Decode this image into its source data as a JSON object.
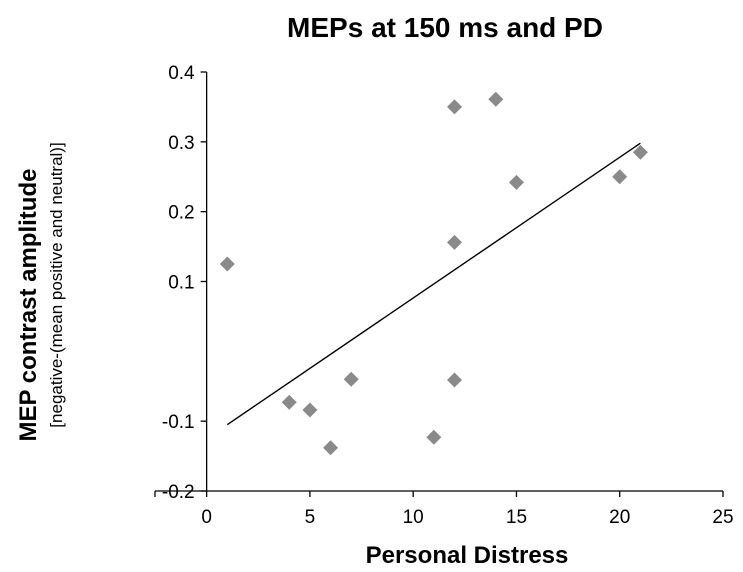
{
  "chart_data": {
    "type": "scatter",
    "title": "MEPs at 150 ms and PD",
    "xlabel": "Personal Distress",
    "ylabel": "MEP contrast amplitude",
    "ylabel_sub": "[negative-(mean positive and neutral)]",
    "xlim": [
      -2.5,
      25
    ],
    "ylim": [
      -0.2,
      0.4
    ],
    "x_ticks": [
      0,
      5,
      10,
      15,
      20,
      25
    ],
    "x_tick_labels": [
      "0",
      "5",
      "10",
      "15",
      "20",
      "25"
    ],
    "y_ticks": [
      -0.2,
      -0.1,
      0.1,
      0.2,
      0.3,
      0.4
    ],
    "y_tick_labels": [
      "-0.2",
      "-0.1",
      "0.1",
      "0.2",
      "0.3",
      "0.4"
    ],
    "grid": false,
    "marker": "diamond",
    "marker_color": "#8a8a8a",
    "points": [
      {
        "x": 1,
        "y": 0.125
      },
      {
        "x": 4,
        "y": -0.073
      },
      {
        "x": 5,
        "y": -0.084
      },
      {
        "x": 6,
        "y": -0.138
      },
      {
        "x": 7,
        "y": -0.04
      },
      {
        "x": 11,
        "y": -0.123
      },
      {
        "x": 12,
        "y": 0.35
      },
      {
        "x": 12,
        "y": 0.156
      },
      {
        "x": 12,
        "y": -0.041
      },
      {
        "x": 14,
        "y": 0.361
      },
      {
        "x": 15,
        "y": 0.242
      },
      {
        "x": 20,
        "y": 0.25
      },
      {
        "x": 21,
        "y": 0.285
      }
    ],
    "trendline": {
      "x": [
        1,
        21
      ],
      "y": [
        -0.105,
        0.298
      ]
    }
  }
}
